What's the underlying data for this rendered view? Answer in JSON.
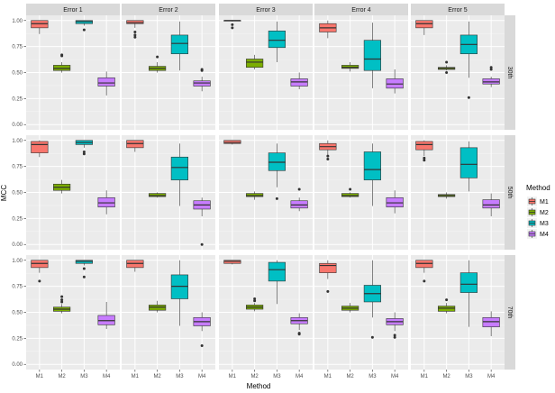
{
  "chart_data": {
    "type": "boxplot",
    "ylabel": "MCC",
    "xlabel": "Method",
    "ylim": [
      0,
      1
    ],
    "y_ticks": [
      "0.00",
      "0.25",
      "0.50",
      "0.75",
      "1.00"
    ],
    "columns": [
      "Error 1",
      "Error 2",
      "Error 3",
      "Error 4",
      "Error 5"
    ],
    "rows": [
      "30th",
      "50th",
      "70th"
    ],
    "methods": [
      "M1",
      "M2",
      "M3",
      "M4"
    ],
    "colors": {
      "M1": "#F8766D",
      "M2": "#7CAE00",
      "M3": "#00BFC4",
      "M4": "#C77CFF"
    },
    "legend": {
      "title": "Method",
      "labels": [
        "M1",
        "M2",
        "M3",
        "M4"
      ],
      "position": "right"
    },
    "panels": [
      [
        [
          {
            "min": 0.87,
            "q1": 0.93,
            "med": 0.97,
            "q3": 1.0,
            "max": 1.0,
            "out": []
          },
          {
            "min": 0.5,
            "q1": 0.52,
            "med": 0.54,
            "q3": 0.57,
            "max": 0.6,
            "out": [
              0.66,
              0.67
            ]
          },
          {
            "min": 0.95,
            "q1": 0.97,
            "med": 0.99,
            "q3": 1.0,
            "max": 1.0,
            "out": [
              0.91
            ]
          },
          {
            "min": 0.28,
            "q1": 0.37,
            "med": 0.4,
            "q3": 0.45,
            "max": 0.51,
            "out": []
          }
        ],
        [
          {
            "min": 0.93,
            "q1": 0.97,
            "med": 0.98,
            "q3": 1.0,
            "max": 1.0,
            "out": [
              0.84,
              0.86,
              0.89
            ]
          },
          {
            "min": 0.5,
            "q1": 0.52,
            "med": 0.54,
            "q3": 0.56,
            "max": 0.6,
            "out": [
              0.65
            ]
          },
          {
            "min": 0.52,
            "q1": 0.68,
            "med": 0.78,
            "q3": 0.86,
            "max": 0.99,
            "out": []
          },
          {
            "min": 0.32,
            "q1": 0.37,
            "med": 0.4,
            "q3": 0.42,
            "max": 0.46,
            "out": [
              0.52,
              0.53
            ]
          }
        ],
        [
          {
            "min": 0.99,
            "q1": 0.995,
            "med": 1.0,
            "q3": 1.0,
            "max": 1.0,
            "out": [
              0.93,
              0.96
            ]
          },
          {
            "min": 0.53,
            "q1": 0.55,
            "med": 0.6,
            "q3": 0.63,
            "max": 0.67,
            "out": []
          },
          {
            "min": 0.6,
            "q1": 0.74,
            "med": 0.81,
            "q3": 0.9,
            "max": 0.99,
            "out": []
          },
          {
            "min": 0.34,
            "q1": 0.37,
            "med": 0.41,
            "q3": 0.44,
            "max": 0.5,
            "out": []
          }
        ],
        [
          {
            "min": 0.83,
            "q1": 0.89,
            "med": 0.93,
            "q3": 0.97,
            "max": 1.0,
            "out": []
          },
          {
            "min": 0.51,
            "q1": 0.54,
            "med": 0.55,
            "q3": 0.57,
            "max": 0.6,
            "out": []
          },
          {
            "min": 0.35,
            "q1": 0.52,
            "med": 0.63,
            "q3": 0.81,
            "max": 0.98,
            "out": []
          },
          {
            "min": 0.3,
            "q1": 0.35,
            "med": 0.39,
            "q3": 0.44,
            "max": 0.53,
            "out": []
          }
        ],
        [
          {
            "min": 0.86,
            "q1": 0.93,
            "med": 0.97,
            "q3": 1.0,
            "max": 1.0,
            "out": []
          },
          {
            "min": 0.52,
            "q1": 0.53,
            "med": 0.54,
            "q3": 0.55,
            "max": 0.57,
            "out": [
              0.5,
              0.6
            ]
          },
          {
            "min": 0.45,
            "q1": 0.68,
            "med": 0.77,
            "q3": 0.86,
            "max": 0.99,
            "out": [
              0.26
            ]
          },
          {
            "min": 0.36,
            "q1": 0.39,
            "med": 0.41,
            "q3": 0.44,
            "max": 0.46,
            "out": [
              0.53,
              0.55
            ]
          }
        ]
      ],
      [
        [
          {
            "min": 0.84,
            "q1": 0.88,
            "med": 0.96,
            "q3": 0.99,
            "max": 1.0,
            "out": []
          },
          {
            "min": 0.49,
            "q1": 0.52,
            "med": 0.55,
            "q3": 0.58,
            "max": 0.62,
            "out": []
          },
          {
            "min": 0.93,
            "q1": 0.96,
            "med": 0.98,
            "q3": 1.0,
            "max": 1.0,
            "out": [
              0.87,
              0.89
            ]
          },
          {
            "min": 0.29,
            "q1": 0.36,
            "med": 0.4,
            "q3": 0.45,
            "max": 0.52,
            "out": []
          }
        ],
        [
          {
            "min": 0.89,
            "q1": 0.93,
            "med": 0.97,
            "q3": 1.0,
            "max": 1.0,
            "out": []
          },
          {
            "min": 0.45,
            "q1": 0.46,
            "med": 0.47,
            "q3": 0.49,
            "max": 0.5,
            "out": []
          },
          {
            "min": 0.37,
            "q1": 0.62,
            "med": 0.74,
            "q3": 0.84,
            "max": 0.97,
            "out": []
          },
          {
            "min": 0.27,
            "q1": 0.34,
            "med": 0.38,
            "q3": 0.42,
            "max": 0.45,
            "out": [
              0.0
            ]
          }
        ],
        [
          {
            "min": 0.96,
            "q1": 0.97,
            "med": 0.98,
            "q3": 1.0,
            "max": 1.0,
            "out": []
          },
          {
            "min": 0.43,
            "q1": 0.46,
            "med": 0.47,
            "q3": 0.49,
            "max": 0.51,
            "out": []
          },
          {
            "min": 0.55,
            "q1": 0.71,
            "med": 0.79,
            "q3": 0.88,
            "max": 0.97,
            "out": [
              0.44
            ]
          },
          {
            "min": 0.32,
            "q1": 0.35,
            "med": 0.38,
            "q3": 0.42,
            "max": 0.45,
            "out": [
              0.53
            ]
          }
        ],
        [
          {
            "min": 0.86,
            "q1": 0.91,
            "med": 0.94,
            "q3": 0.97,
            "max": 1.0,
            "out": [
              0.82,
              0.85
            ]
          },
          {
            "min": 0.45,
            "q1": 0.46,
            "med": 0.47,
            "q3": 0.49,
            "max": 0.5,
            "out": [
              0.53
            ]
          },
          {
            "min": 0.37,
            "q1": 0.62,
            "med": 0.72,
            "q3": 0.89,
            "max": 0.97,
            "out": []
          },
          {
            "min": 0.3,
            "q1": 0.36,
            "med": 0.4,
            "q3": 0.45,
            "max": 0.52,
            "out": []
          }
        ],
        [
          {
            "min": 0.85,
            "q1": 0.91,
            "med": 0.96,
            "q3": 0.99,
            "max": 1.0,
            "out": [
              0.81,
              0.83
            ]
          },
          {
            "min": 0.44,
            "q1": 0.46,
            "med": 0.47,
            "q3": 0.48,
            "max": 0.5,
            "out": []
          },
          {
            "min": 0.51,
            "q1": 0.64,
            "med": 0.77,
            "q3": 0.93,
            "max": 0.99,
            "out": []
          },
          {
            "min": 0.27,
            "q1": 0.35,
            "med": 0.38,
            "q3": 0.43,
            "max": 0.49,
            "out": []
          }
        ]
      ],
      [
        [
          {
            "min": 0.88,
            "q1": 0.93,
            "med": 0.97,
            "q3": 1.0,
            "max": 1.0,
            "out": [
              0.8
            ]
          },
          {
            "min": 0.49,
            "q1": 0.51,
            "med": 0.53,
            "q3": 0.55,
            "max": 0.58,
            "out": [
              0.6,
              0.62,
              0.65
            ]
          },
          {
            "min": 0.95,
            "q1": 0.97,
            "med": 0.99,
            "q3": 1.0,
            "max": 1.0,
            "out": [
              0.84,
              0.92
            ]
          },
          {
            "min": 0.34,
            "q1": 0.38,
            "med": 0.42,
            "q3": 0.47,
            "max": 0.6,
            "out": []
          }
        ],
        [
          {
            "min": 0.89,
            "q1": 0.93,
            "med": 0.97,
            "q3": 1.0,
            "max": 1.0,
            "out": []
          },
          {
            "min": 0.5,
            "q1": 0.52,
            "med": 0.55,
            "q3": 0.57,
            "max": 0.61,
            "out": []
          },
          {
            "min": 0.37,
            "q1": 0.63,
            "med": 0.75,
            "q3": 0.86,
            "max": 1.0,
            "out": []
          },
          {
            "min": 0.32,
            "q1": 0.37,
            "med": 0.41,
            "q3": 0.45,
            "max": 0.5,
            "out": [
              0.18
            ]
          }
        ],
        [
          {
            "min": 0.96,
            "q1": 0.97,
            "med": 0.99,
            "q3": 1.0,
            "max": 1.0,
            "out": []
          },
          {
            "min": 0.51,
            "q1": 0.53,
            "med": 0.55,
            "q3": 0.57,
            "max": 0.59,
            "out": [
              0.61,
              0.63
            ]
          },
          {
            "min": 0.58,
            "q1": 0.8,
            "med": 0.91,
            "q3": 0.98,
            "max": 1.0,
            "out": []
          },
          {
            "min": 0.33,
            "q1": 0.39,
            "med": 0.42,
            "q3": 0.45,
            "max": 0.49,
            "out": [
              0.29,
              0.3
            ]
          }
        ],
        [
          {
            "min": 0.82,
            "q1": 0.88,
            "med": 0.95,
            "q3": 0.97,
            "max": 1.0,
            "out": [
              0.7
            ]
          },
          {
            "min": 0.5,
            "q1": 0.52,
            "med": 0.54,
            "q3": 0.56,
            "max": 0.59,
            "out": []
          },
          {
            "min": 0.45,
            "q1": 0.6,
            "med": 0.68,
            "q3": 0.76,
            "max": 1.0,
            "out": [
              0.26
            ]
          },
          {
            "min": 0.32,
            "q1": 0.38,
            "med": 0.41,
            "q3": 0.44,
            "max": 0.5,
            "out": [
              0.26,
              0.28
            ]
          }
        ],
        [
          {
            "min": 0.88,
            "q1": 0.93,
            "med": 0.97,
            "q3": 1.0,
            "max": 1.0,
            "out": [
              0.8
            ]
          },
          {
            "min": 0.49,
            "q1": 0.51,
            "med": 0.54,
            "q3": 0.56,
            "max": 0.59,
            "out": [
              0.62
            ]
          },
          {
            "min": 0.36,
            "q1": 0.69,
            "med": 0.77,
            "q3": 0.88,
            "max": 1.0,
            "out": []
          },
          {
            "min": 0.27,
            "q1": 0.36,
            "med": 0.41,
            "q3": 0.45,
            "max": 0.51,
            "out": []
          }
        ]
      ]
    ]
  }
}
